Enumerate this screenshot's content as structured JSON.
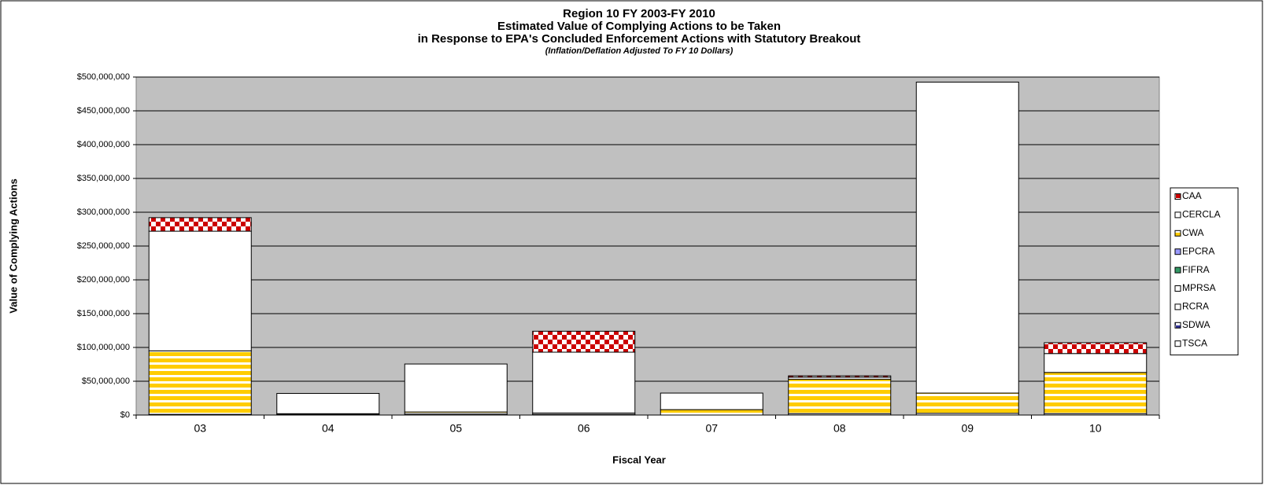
{
  "chart_data": {
    "type": "bar",
    "stacked": true,
    "title": [
      "Region 10 FY 2003-FY 2010",
      "Estimated Value of Complying Actions to be Taken",
      "in Response to EPA's Concluded Enforcement Actions with Statutory Breakout"
    ],
    "subtitle": "(Inflation/Deflation Adjusted To FY 10 Dollars)",
    "x_label": "Fiscal Year",
    "y_label": "Value of Complying Actions",
    "categories": [
      "03",
      "04",
      "05",
      "06",
      "07",
      "08",
      "09",
      "10"
    ],
    "series": [
      {
        "name": "CAA",
        "color": "#cc0000",
        "pattern": "checker",
        "values": [
          20000000,
          0,
          0,
          31000000,
          0,
          2000000,
          0,
          16000000
        ]
      },
      {
        "name": "CERCLA",
        "color": "#ffffff",
        "values": [
          177000000,
          30000000,
          71000000,
          90000000,
          24500000,
          3000000,
          460000000,
          28000000
        ]
      },
      {
        "name": "CWA",
        "color": "#ffcc00",
        "pattern": "stripes",
        "values": [
          94000000,
          1000000,
          3000000,
          2000000,
          8000000,
          51000000,
          30000000,
          61000000
        ]
      },
      {
        "name": "EPCRA",
        "color": "#9999ff",
        "values": [
          0,
          0,
          0,
          0,
          0,
          0,
          0,
          0
        ]
      },
      {
        "name": "FIFRA",
        "color": "#339966",
        "values": [
          0,
          0,
          0,
          0,
          0,
          0,
          0,
          0
        ]
      },
      {
        "name": "MPRSA",
        "color": "#ffffff",
        "values": [
          0,
          0,
          0,
          0,
          0,
          0,
          0,
          0
        ]
      },
      {
        "name": "RCRA",
        "color": "#ffffff",
        "values": [
          1000000,
          1000000,
          1500000,
          1000000,
          0,
          2000000,
          2500000,
          2000000
        ]
      },
      {
        "name": "SDWA",
        "color": "#333399",
        "pattern": "checker",
        "values": [
          0,
          0,
          0,
          0,
          0,
          0,
          0,
          0
        ]
      },
      {
        "name": "TSCA",
        "color": "#ffffff",
        "values": [
          0,
          0,
          0,
          0,
          0,
          0,
          0,
          0
        ]
      }
    ],
    "ylim": [
      0,
      500000000
    ],
    "yticks": [
      {
        "value": 0,
        "label": "$0"
      },
      {
        "value": 50000000,
        "label": "$50,000,000"
      },
      {
        "value": 100000000,
        "label": "$100,000,000"
      },
      {
        "value": 150000000,
        "label": "$150,000,000"
      },
      {
        "value": 200000000,
        "label": "$200,000,000"
      },
      {
        "value": 250000000,
        "label": "$250,000,000"
      },
      {
        "value": 300000000,
        "label": "$300,000,000"
      },
      {
        "value": 350000000,
        "label": "$350,000,000"
      },
      {
        "value": 400000000,
        "label": "$400,000,000"
      },
      {
        "value": 450000000,
        "label": "$450,000,000"
      },
      {
        "value": 500000000,
        "label": "$500,000,000"
      }
    ],
    "grid": true,
    "legend": "right",
    "plot_background": "#c0c0c0"
  }
}
